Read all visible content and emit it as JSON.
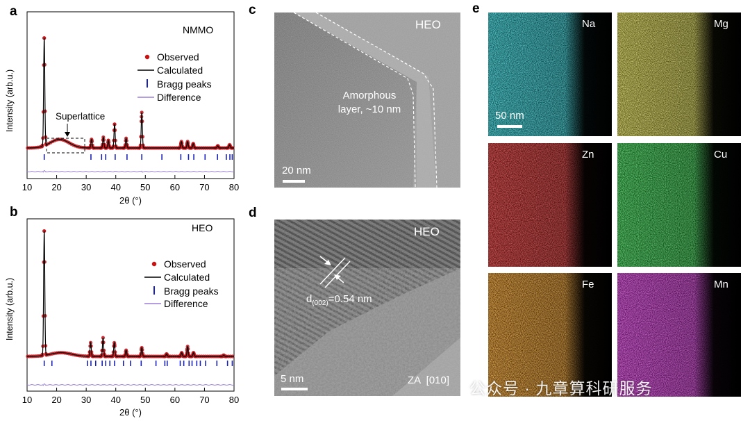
{
  "panels": {
    "a": {
      "letter": "a",
      "sample": "NMMO",
      "annotation": "Superlattice",
      "ylabel": "Intensity (arb.u.)",
      "xlabel": "2θ (°)",
      "legend": [
        "Observed",
        "Calculated",
        "Bragg peaks",
        "Difference"
      ]
    },
    "b": {
      "letter": "b",
      "sample": "HEO",
      "ylabel": "Intensity (arb.u.)",
      "xlabel": "2θ (°)",
      "legend": [
        "Observed",
        "Calculated",
        "Bragg peaks",
        "Difference"
      ]
    },
    "c": {
      "letter": "c",
      "sample": "HEO",
      "annotation_line1": "Amorphous",
      "annotation_line2": "layer, ~10 nm",
      "scale": "20 nm"
    },
    "d": {
      "letter": "d",
      "sample": "HEO",
      "spacing_prefix": "d",
      "spacing_sub": "(002)",
      "spacing_value": "=0.54 nm",
      "zone_axis": "ZA  [010]",
      "scale": "5 nm"
    },
    "e": {
      "letter": "e",
      "scale": "50 nm",
      "maps": [
        {
          "element": "Na",
          "color": "#21c7cf"
        },
        {
          "element": "Mg",
          "color": "#d8d23a"
        },
        {
          "element": "Zn",
          "color": "#d62222"
        },
        {
          "element": "Cu",
          "color": "#27c93a"
        },
        {
          "element": "Fe",
          "color": "#e8811a"
        },
        {
          "element": "Mn",
          "color": "#d32bd8"
        }
      ]
    }
  },
  "watermark": "公众号 · 九章算科研服务",
  "chart_data": [
    {
      "type": "line",
      "id": "a",
      "title": "NMMO",
      "xlabel": "2θ (°)",
      "ylabel": "Intensity (arb.u.)",
      "xlim": [
        10,
        80
      ],
      "xticks": [
        10,
        20,
        30,
        40,
        50,
        60,
        70,
        80
      ],
      "baseline": 0.08,
      "peaks": [
        {
          "x": 15.8,
          "h": 1.0
        },
        {
          "x": 31.8,
          "h": 0.08
        },
        {
          "x": 35.8,
          "h": 0.1
        },
        {
          "x": 37.5,
          "h": 0.07
        },
        {
          "x": 39.6,
          "h": 0.22
        },
        {
          "x": 43.5,
          "h": 0.09
        },
        {
          "x": 48.8,
          "h": 0.33
        },
        {
          "x": 62.2,
          "h": 0.06
        },
        {
          "x": 64.3,
          "h": 0.06
        },
        {
          "x": 66.2,
          "h": 0.04
        },
        {
          "x": 74.5,
          "h": 0.02
        },
        {
          "x": 78.5,
          "h": 0.03
        }
      ],
      "hump": {
        "center": 21.0,
        "height": 0.08,
        "width": 4.5
      },
      "bragg_positions": [
        15.8,
        31.6,
        35.2,
        36.6,
        39.8,
        43.8,
        48.8,
        55.6,
        62.0,
        64.6,
        66.4,
        70.2,
        74.4,
        77.4,
        78.6,
        79.4
      ],
      "series": [
        {
          "name": "Observed"
        },
        {
          "name": "Calculated"
        },
        {
          "name": "Bragg peaks"
        },
        {
          "name": "Difference"
        }
      ]
    },
    {
      "type": "line",
      "id": "b",
      "title": "HEO",
      "xlabel": "2θ (°)",
      "ylabel": "Intensity (arb.u.)",
      "xlim": [
        10,
        80
      ],
      "xticks": [
        10,
        20,
        30,
        40,
        50,
        60,
        70,
        80
      ],
      "baseline": 0.07,
      "peaks": [
        {
          "x": 15.8,
          "h": 1.0
        },
        {
          "x": 31.5,
          "h": 0.11
        },
        {
          "x": 35.7,
          "h": 0.15
        },
        {
          "x": 39.5,
          "h": 0.11
        },
        {
          "x": 43.5,
          "h": 0.05
        },
        {
          "x": 48.8,
          "h": 0.07
        },
        {
          "x": 57.2,
          "h": 0.02
        },
        {
          "x": 62.3,
          "h": 0.03
        },
        {
          "x": 64.3,
          "h": 0.08
        },
        {
          "x": 66.3,
          "h": 0.03
        },
        {
          "x": 76.5,
          "h": 0.01
        }
      ],
      "hump": {
        "center": 21.5,
        "height": 0.03,
        "width": 5
      },
      "bragg_positions": [
        15.8,
        18.4,
        30.4,
        31.6,
        33.2,
        35.4,
        36.6,
        38.0,
        39.6,
        42.6,
        45.0,
        48.6,
        53.6,
        56.6,
        57.4,
        61.8,
        63.0,
        64.8,
        65.8,
        67.4,
        68.6,
        70.4,
        74.2,
        77.8,
        79.4
      ],
      "series": [
        {
          "name": "Observed"
        },
        {
          "name": "Calculated"
        },
        {
          "name": "Bragg peaks"
        },
        {
          "name": "Difference"
        }
      ]
    }
  ]
}
